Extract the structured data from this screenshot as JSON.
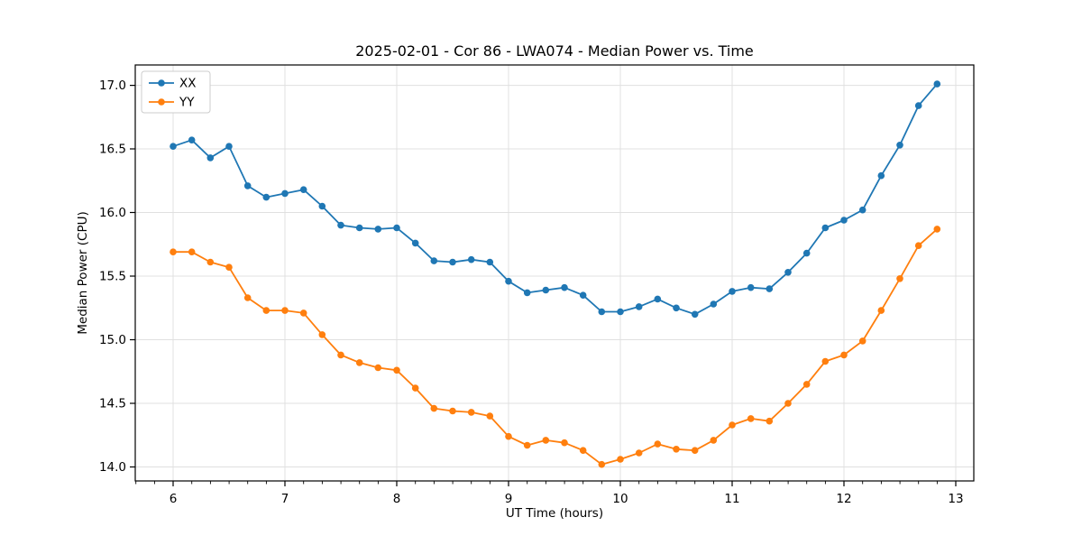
{
  "chart_data": {
    "type": "line",
    "title": "2025-02-01 - Cor 86 - LWA074 - Median Power vs. Time",
    "xlabel": "UT Time (hours)",
    "ylabel": "Median Power (CPU)",
    "x": [
      6.0,
      6.167,
      6.333,
      6.5,
      6.667,
      6.833,
      7.0,
      7.167,
      7.333,
      7.5,
      7.667,
      7.833,
      8.0,
      8.167,
      8.333,
      8.5,
      8.667,
      8.833,
      9.0,
      9.167,
      9.333,
      9.5,
      9.667,
      9.833,
      10.0,
      10.167,
      10.333,
      10.5,
      10.667,
      10.833,
      11.0,
      11.167,
      11.333,
      11.5,
      11.667,
      11.833,
      12.0,
      12.167,
      12.333,
      12.5,
      12.667,
      12.833
    ],
    "series": [
      {
        "name": "XX",
        "color": "#1f77b4",
        "values": [
          16.52,
          16.57,
          16.43,
          16.52,
          16.21,
          16.12,
          16.15,
          16.18,
          16.05,
          15.9,
          15.88,
          15.87,
          15.88,
          15.76,
          15.62,
          15.61,
          15.63,
          15.61,
          15.46,
          15.37,
          15.39,
          15.41,
          15.35,
          15.22,
          15.22,
          15.26,
          15.32,
          15.25,
          15.2,
          15.28,
          15.38,
          15.41,
          15.4,
          15.53,
          15.68,
          15.88,
          15.94,
          16.02,
          16.29,
          16.53,
          16.84,
          17.01
        ]
      },
      {
        "name": "YY",
        "color": "#ff7f0e",
        "values": [
          15.69,
          15.69,
          15.61,
          15.57,
          15.33,
          15.23,
          15.23,
          15.21,
          15.04,
          14.88,
          14.82,
          14.78,
          14.76,
          14.62,
          14.46,
          14.44,
          14.43,
          14.4,
          14.24,
          14.17,
          14.21,
          14.19,
          14.13,
          14.02,
          14.06,
          14.11,
          14.18,
          14.14,
          14.13,
          14.21,
          14.33,
          14.38,
          14.36,
          14.5,
          14.65,
          14.83,
          14.88,
          14.99,
          15.23,
          15.48,
          15.74,
          15.87
        ]
      }
    ],
    "xlim": [
      5.661,
      13.161
    ],
    "ylim": [
      13.89,
      17.16
    ],
    "xticks": [
      6,
      7,
      8,
      9,
      10,
      11,
      12,
      13
    ],
    "yticks": [
      14.0,
      14.5,
      15.0,
      15.5,
      16.0,
      16.5,
      17.0
    ],
    "minor_xtick_interval": 0.16667,
    "grid": true,
    "grid_color": "#e0e0e0",
    "background": "#ffffff",
    "legend": {
      "position": "upper-left",
      "entries": [
        "XX",
        "YY"
      ]
    }
  }
}
